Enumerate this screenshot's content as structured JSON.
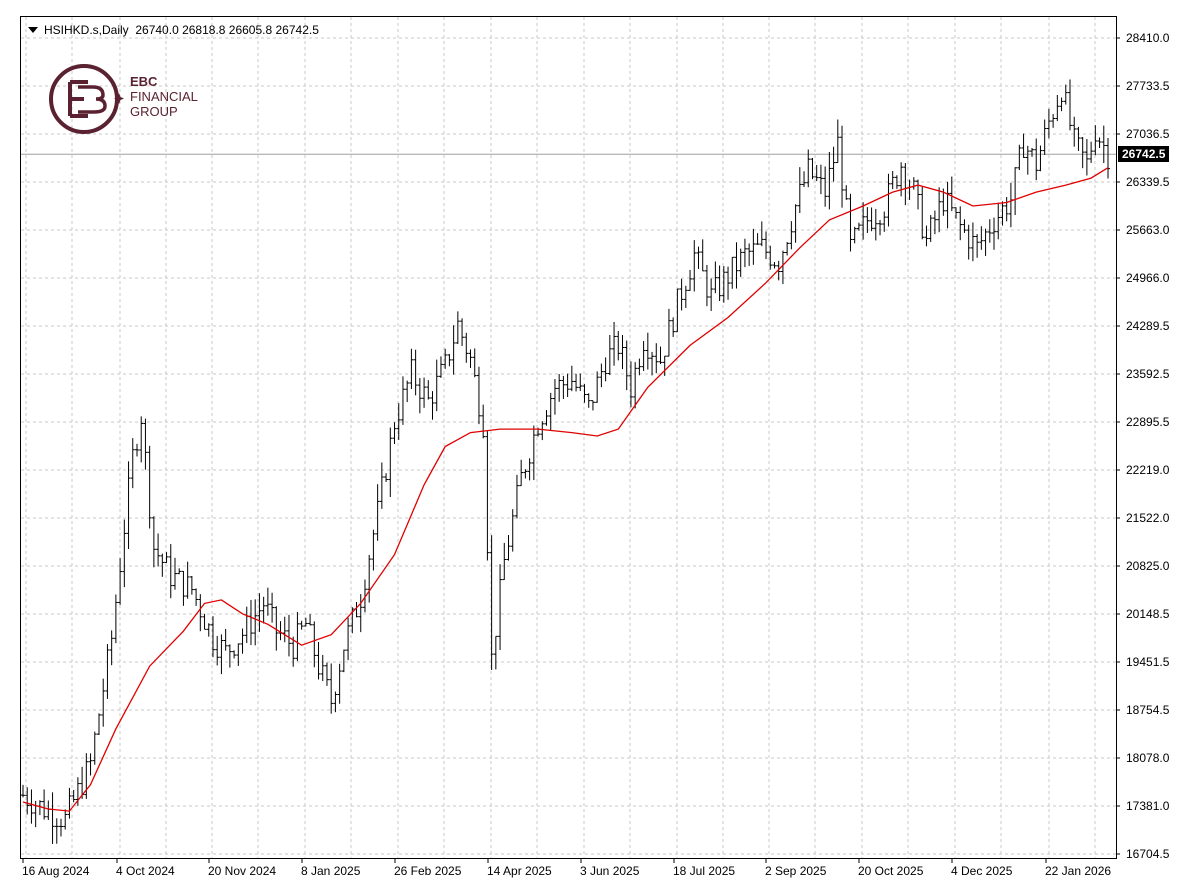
{
  "header": {
    "symbol": "HSIHKD.s,Daily",
    "ohlc": "26740.0 26818.8 26605.8 26742.5"
  },
  "logo": {
    "brand": "EBC",
    "line1": "FINANCIAL",
    "line2": "GROUP"
  },
  "current_price": "26742.5",
  "colors": {
    "candle": "#000000",
    "ma": "#e00000",
    "grid": "#c8c8c8",
    "logo": "#5a2230"
  },
  "chart_data": {
    "type": "line",
    "y_ticks": [
      "28410.0",
      "27733.5",
      "27036.5",
      "26339.5",
      "25663.0",
      "24966.0",
      "24289.5",
      "23592.5",
      "22895.5",
      "22219.0",
      "21522.0",
      "20825.0",
      "20148.5",
      "19451.5",
      "18754.5",
      "18078.0",
      "17381.0",
      "16704.5"
    ],
    "x_ticks": [
      "16 Aug 2024",
      "4 Oct 2024",
      "20 Nov 2024",
      "8 Jan 2025",
      "26 Feb 2025",
      "14 Apr 2025",
      "3 Jun 2025",
      "18 Jul 2025",
      "2 Sep 2025",
      "20 Oct 2025",
      "4 Dec 2025",
      "22 Jan 2026"
    ],
    "ylim": [
      16704.5,
      28410.0
    ],
    "grid": true,
    "price_series": [
      {
        "day": 0,
        "price": 17550
      },
      {
        "day": 10,
        "price": 17350
      },
      {
        "day": 20,
        "price": 17200
      },
      {
        "day": 32,
        "price": 18000
      },
      {
        "day": 42,
        "price": 19800
      },
      {
        "day": 48,
        "price": 21400
      },
      {
        "day": 52,
        "price": 22400
      },
      {
        "day": 56,
        "price": 23000
      },
      {
        "day": 62,
        "price": 21100
      },
      {
        "day": 70,
        "price": 20700
      },
      {
        "day": 80,
        "price": 20500
      },
      {
        "day": 90,
        "price": 19800
      },
      {
        "day": 96,
        "price": 19600
      },
      {
        "day": 105,
        "price": 19900
      },
      {
        "day": 114,
        "price": 20300
      },
      {
        "day": 120,
        "price": 19900
      },
      {
        "day": 128,
        "price": 19700
      },
      {
        "day": 134,
        "price": 20000
      },
      {
        "day": 140,
        "price": 19400
      },
      {
        "day": 146,
        "price": 18900
      },
      {
        "day": 152,
        "price": 19700
      },
      {
        "day": 160,
        "price": 20400
      },
      {
        "day": 168,
        "price": 21600
      },
      {
        "day": 176,
        "price": 22900
      },
      {
        "day": 184,
        "price": 23600
      },
      {
        "day": 192,
        "price": 23200
      },
      {
        "day": 200,
        "price": 23700
      },
      {
        "day": 206,
        "price": 24300
      },
      {
        "day": 212,
        "price": 23800
      },
      {
        "day": 218,
        "price": 22900
      },
      {
        "day": 222,
        "price": 19500
      },
      {
        "day": 228,
        "price": 20900
      },
      {
        "day": 236,
        "price": 22100
      },
      {
        "day": 244,
        "price": 22900
      },
      {
        "day": 252,
        "price": 23400
      },
      {
        "day": 260,
        "price": 23500
      },
      {
        "day": 268,
        "price": 23100
      },
      {
        "day": 276,
        "price": 23800
      },
      {
        "day": 282,
        "price": 24000
      },
      {
        "day": 288,
        "price": 23400
      },
      {
        "day": 294,
        "price": 24100
      },
      {
        "day": 302,
        "price": 23800
      },
      {
        "day": 310,
        "price": 24600
      },
      {
        "day": 318,
        "price": 25300
      },
      {
        "day": 326,
        "price": 24700
      },
      {
        "day": 334,
        "price": 25000
      },
      {
        "day": 342,
        "price": 25300
      },
      {
        "day": 350,
        "price": 25400
      },
      {
        "day": 358,
        "price": 25200
      },
      {
        "day": 366,
        "price": 26000
      },
      {
        "day": 372,
        "price": 26500
      },
      {
        "day": 380,
        "price": 26200
      },
      {
        "day": 386,
        "price": 26900
      },
      {
        "day": 392,
        "price": 25400
      },
      {
        "day": 400,
        "price": 25800
      },
      {
        "day": 408,
        "price": 26000
      },
      {
        "day": 416,
        "price": 26600
      },
      {
        "day": 422,
        "price": 26200
      },
      {
        "day": 428,
        "price": 25500
      },
      {
        "day": 436,
        "price": 26100
      },
      {
        "day": 444,
        "price": 25700
      },
      {
        "day": 452,
        "price": 25400
      },
      {
        "day": 460,
        "price": 25800
      },
      {
        "day": 468,
        "price": 26100
      },
      {
        "day": 474,
        "price": 26900
      },
      {
        "day": 480,
        "price": 26600
      },
      {
        "day": 486,
        "price": 27200
      },
      {
        "day": 492,
        "price": 27700
      },
      {
        "day": 498,
        "price": 26900
      },
      {
        "day": 504,
        "price": 26600
      },
      {
        "day": 508,
        "price": 27100
      },
      {
        "day": 514,
        "price": 26742.5
      }
    ],
    "ma_series": [
      {
        "day": 0,
        "price": 17450
      },
      {
        "day": 12,
        "price": 17350
      },
      {
        "day": 22,
        "price": 17320
      },
      {
        "day": 32,
        "price": 17700
      },
      {
        "day": 44,
        "price": 18500
      },
      {
        "day": 60,
        "price": 19400
      },
      {
        "day": 76,
        "price": 19900
      },
      {
        "day": 86,
        "price": 20300
      },
      {
        "day": 94,
        "price": 20350
      },
      {
        "day": 104,
        "price": 20150
      },
      {
        "day": 116,
        "price": 20000
      },
      {
        "day": 132,
        "price": 19700
      },
      {
        "day": 146,
        "price": 19850
      },
      {
        "day": 160,
        "price": 20300
      },
      {
        "day": 176,
        "price": 21000
      },
      {
        "day": 190,
        "price": 22000
      },
      {
        "day": 200,
        "price": 22550
      },
      {
        "day": 212,
        "price": 22750
      },
      {
        "day": 226,
        "price": 22800
      },
      {
        "day": 244,
        "price": 22800
      },
      {
        "day": 260,
        "price": 22750
      },
      {
        "day": 272,
        "price": 22700
      },
      {
        "day": 282,
        "price": 22800
      },
      {
        "day": 296,
        "price": 23400
      },
      {
        "day": 316,
        "price": 24000
      },
      {
        "day": 334,
        "price": 24400
      },
      {
        "day": 352,
        "price": 24900
      },
      {
        "day": 368,
        "price": 25400
      },
      {
        "day": 382,
        "price": 25800
      },
      {
        "day": 398,
        "price": 26000
      },
      {
        "day": 412,
        "price": 26200
      },
      {
        "day": 424,
        "price": 26300
      },
      {
        "day": 436,
        "price": 26200
      },
      {
        "day": 450,
        "price": 26000
      },
      {
        "day": 466,
        "price": 26050
      },
      {
        "day": 480,
        "price": 26200
      },
      {
        "day": 494,
        "price": 26300
      },
      {
        "day": 506,
        "price": 26400
      },
      {
        "day": 514,
        "price": 26550
      }
    ]
  }
}
